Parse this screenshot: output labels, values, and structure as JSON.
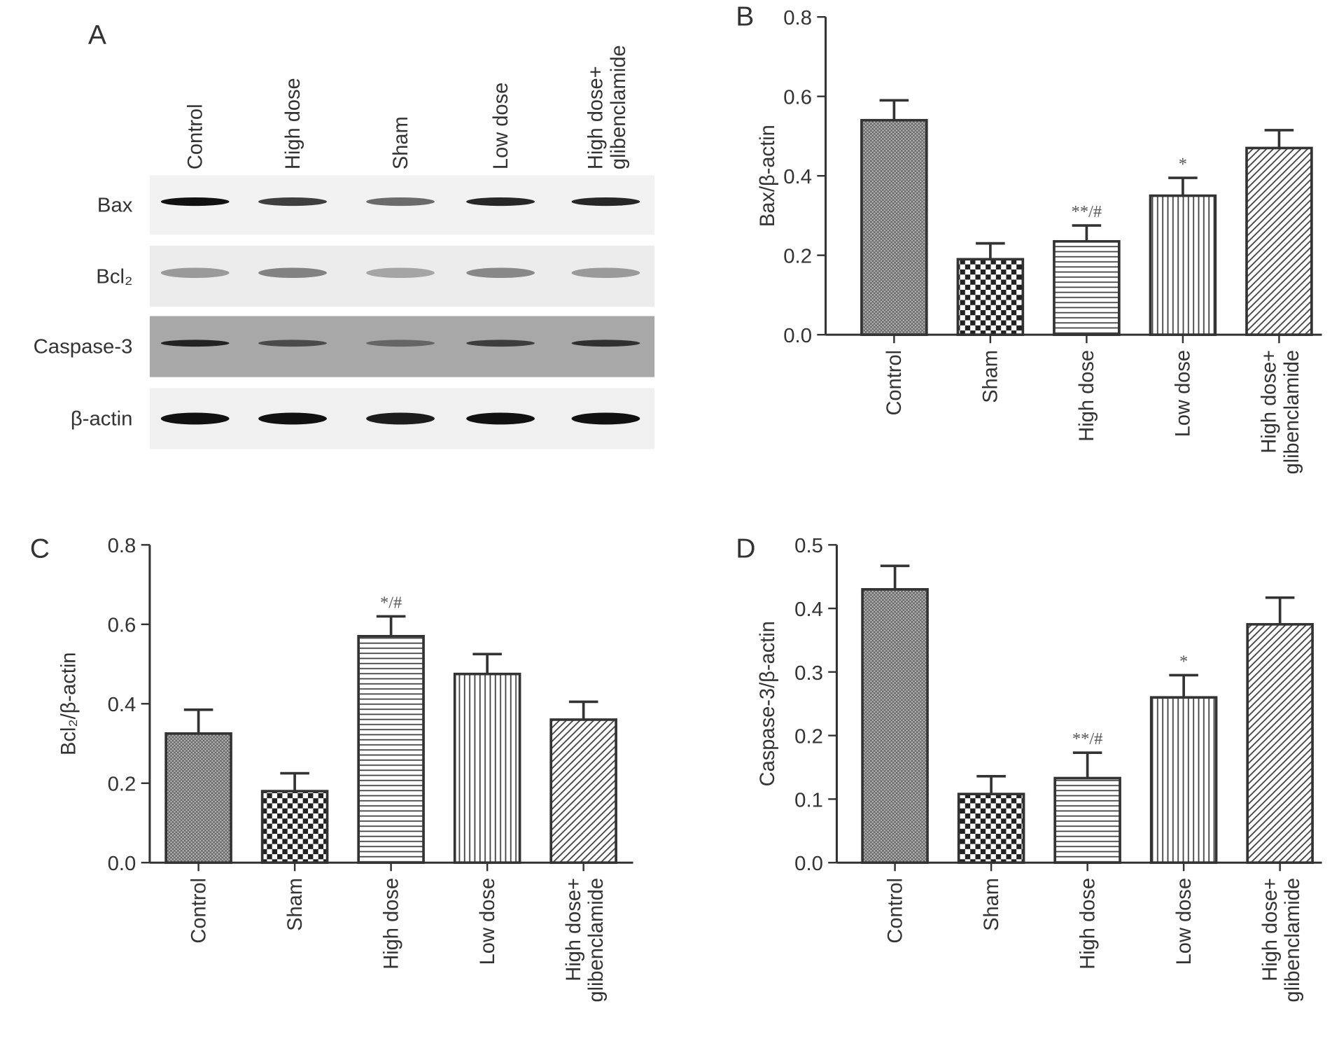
{
  "blot": {
    "panel": "A",
    "lanes": [
      "Control",
      "High dose",
      "Sham",
      "Low dose",
      "High dose+ glibenclamide"
    ],
    "rows": [
      "Bax",
      "Bcl₂",
      "Caspase-3",
      "β-actin"
    ]
  },
  "chart_data": [
    {
      "type": "bar",
      "panel": "B",
      "ylabel": "Bax/β-actin",
      "categories": [
        "Control",
        "Sham",
        "High dose",
        "Low dose",
        "High dose+ glibenclamide"
      ],
      "values": [
        0.54,
        0.19,
        0.235,
        0.35,
        0.47
      ],
      "errors": [
        0.05,
        0.04,
        0.04,
        0.045,
        0.045
      ],
      "annotations": [
        null,
        null,
        "**/#",
        "*",
        null
      ],
      "patterns": [
        "crosshatch",
        "checker",
        "horizontal",
        "vertical",
        "diagonal"
      ],
      "ylim": [
        0,
        0.8
      ],
      "yticks": [
        {
          "value": 0,
          "label": "0.0"
        },
        0.2,
        0.4,
        0.6,
        0.8
      ]
    },
    {
      "type": "bar",
      "panel": "C",
      "ylabel": "Bcl₂/β-actin",
      "categories": [
        "Control",
        "Sham",
        "High dose",
        "Low dose",
        "High dose+ glibenclamide"
      ],
      "values": [
        0.325,
        0.18,
        0.57,
        0.475,
        0.36
      ],
      "errors": [
        0.06,
        0.045,
        0.05,
        0.05,
        0.045
      ],
      "annotations": [
        null,
        null,
        "*/#",
        null,
        null
      ],
      "patterns": [
        "crosshatch",
        "checker",
        "horizontal",
        "vertical",
        "diagonal"
      ],
      "ylim": [
        0,
        0.8
      ],
      "yticks": [
        {
          "value": 0,
          "label": "0.0"
        },
        0.2,
        0.4,
        0.6,
        0.8
      ]
    },
    {
      "type": "bar",
      "panel": "D",
      "ylabel": "Caspase-3/β-actin",
      "categories": [
        "Control",
        "Sham",
        "High dose",
        "Low dose",
        "High dose+ glibenclamide"
      ],
      "values": [
        0.43,
        0.108,
        0.133,
        0.26,
        0.375
      ],
      "errors": [
        0.037,
        0.028,
        0.04,
        0.035,
        0.042
      ],
      "annotations": [
        null,
        null,
        "**/#",
        "*",
        null
      ],
      "patterns": [
        "crosshatch",
        "checker",
        "horizontal",
        "vertical",
        "diagonal"
      ],
      "ylim": [
        0,
        0.5
      ],
      "yticks": [
        {
          "value": 0,
          "label": "0.0"
        },
        0.1,
        0.2,
        0.3,
        0.4,
        0.5
      ]
    }
  ]
}
